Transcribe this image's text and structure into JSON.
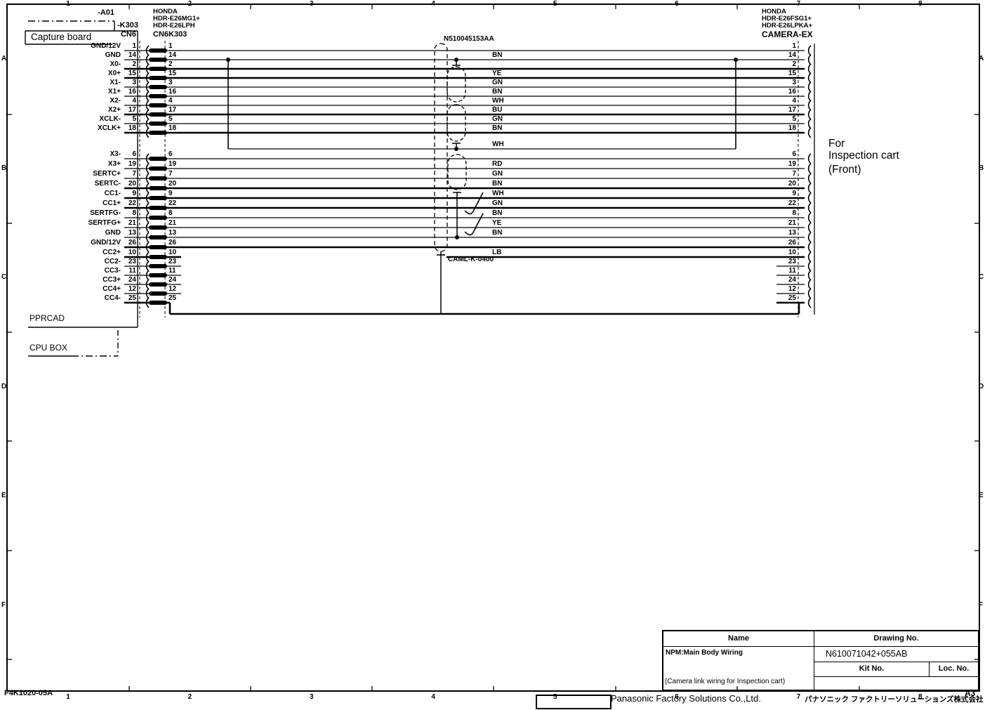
{
  "frame": {
    "cols": [
      "1",
      "2",
      "3",
      "4",
      "5",
      "6",
      "7",
      "8"
    ],
    "rows": [
      "A",
      "B",
      "C",
      "D",
      "E",
      "F"
    ],
    "sheet_code": "F4K1020-05A",
    "paper_size": "A3"
  },
  "left_block": {
    "ref_a": "-A01",
    "ref_k": "-K303",
    "board": "Capture board",
    "connector": "CN6",
    "maker": "HONDA",
    "part1": "HDR-E26MG1+",
    "part2": "HDR-E26LPH",
    "mating_connector": "CN6K303",
    "pprcad": "PPRCAD",
    "cpu_box": "CPU BOX"
  },
  "right_block": {
    "maker": "HONDA",
    "part1": "HDR-E26FSG1+",
    "part2": "HDR-E26LPKA+",
    "name": "CAMERA-EX",
    "note_lines": [
      "For",
      "Inspection cart",
      "(Front)"
    ]
  },
  "cable": {
    "assembly_no": "N510045153AA",
    "cable_no": "CAML-K-0400",
    "drain_wire_color": "WH",
    "shield_tail_color": "LB"
  },
  "rows": [
    {
      "signal": "GND/12V",
      "pin": "1",
      "color": "",
      "type": "through",
      "thick": false
    },
    {
      "signal": "GND",
      "pin": "14",
      "color": "BN",
      "type": "through",
      "thick": false
    },
    {
      "signal": "X0-",
      "pin": "2",
      "color": "",
      "type": "through",
      "thick": true
    },
    {
      "signal": "X0+",
      "pin": "15",
      "color": "YE",
      "type": "through",
      "thick": true
    },
    {
      "signal": "X1-",
      "pin": "3",
      "color": "GN",
      "type": "through",
      "thick": false
    },
    {
      "signal": "X1+",
      "pin": "16",
      "color": "BN",
      "type": "through",
      "thick": false
    },
    {
      "signal": "X2-",
      "pin": "4",
      "color": "WH",
      "type": "through",
      "thick": false
    },
    {
      "signal": "X2+",
      "pin": "17",
      "color": "BU",
      "type": "through",
      "thick": true
    },
    {
      "signal": "XCLK-",
      "pin": "5",
      "color": "GN",
      "type": "through",
      "thick": false
    },
    {
      "signal": "XCLK+",
      "pin": "18",
      "color": "BN",
      "type": "through",
      "thick": true
    },
    {
      "signal": "X3-",
      "pin": "6",
      "color": "",
      "type": "through",
      "thick": false
    },
    {
      "signal": "X3+",
      "pin": "19",
      "color": "RD",
      "type": "through",
      "thick": false
    },
    {
      "signal": "SERTC+",
      "pin": "7",
      "color": "GN",
      "type": "through",
      "thick": false
    },
    {
      "signal": "SERTC-",
      "pin": "20",
      "color": "BN",
      "type": "through",
      "thick": true
    },
    {
      "signal": "CC1-",
      "pin": "9",
      "color": "WH",
      "type": "through",
      "thick": true
    },
    {
      "signal": "CC1+",
      "pin": "22",
      "color": "GN",
      "type": "through",
      "thick": true
    },
    {
      "signal": "SERTFG-",
      "pin": "8",
      "color": "BN",
      "type": "through",
      "thick": false
    },
    {
      "signal": "SERTFG+",
      "pin": "21",
      "color": "YE",
      "type": "through",
      "thick": false
    },
    {
      "signal": "GND",
      "pin": "13",
      "color": "BN",
      "type": "through",
      "thick": false
    },
    {
      "signal": "GND/12V",
      "pin": "26",
      "color": "",
      "type": "through",
      "thick": true
    },
    {
      "signal": "CC2+",
      "pin": "10",
      "color": "LB",
      "type": "shield-tail",
      "thick": true
    },
    {
      "signal": "CC2-",
      "pin": "23",
      "color": "",
      "type": "stub",
      "thick": false
    },
    {
      "signal": "CC3-",
      "pin": "11",
      "color": "",
      "type": "stub",
      "thick": false
    },
    {
      "signal": "CC3+",
      "pin": "24",
      "color": "",
      "type": "stub",
      "thick": false
    },
    {
      "signal": "CC4+",
      "pin": "12",
      "color": "",
      "type": "stub",
      "thick": false
    },
    {
      "signal": "CC4-",
      "pin": "25",
      "color": "",
      "type": "detour",
      "thick": true
    }
  ],
  "title_block": {
    "name_header": "Name",
    "drawing_header": "Drawing No.",
    "name": "NPM:Main Body Wiring",
    "name_sub": "(Camera link wiring for Inspection cart)",
    "drawing_no": "N610071042+055AB",
    "kit_header": "Kit No.",
    "loc_header": "Loc. No."
  },
  "footer": {
    "company_en": "Panasonic  Factory  Solutions  Co.,Ltd.",
    "company_jp": "パナソニック ファクトリーソリューションズ株式会社"
  },
  "ink": "#000000",
  "paper": "#ffffff"
}
